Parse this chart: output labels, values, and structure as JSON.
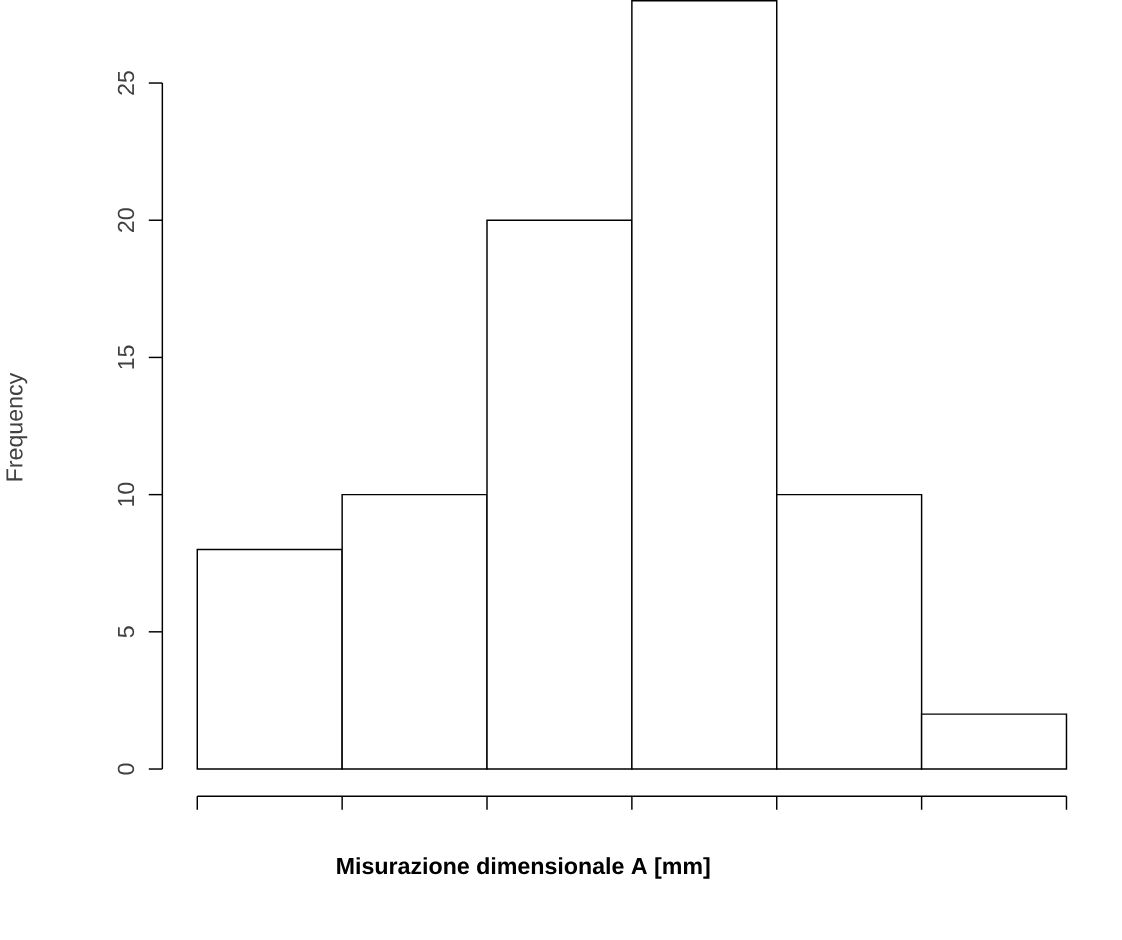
{
  "chart_data": {
    "type": "bar",
    "xlabel": "Misurazione dimensionale A [mm]",
    "ylabel": "Frequency",
    "categories": [
      null,
      null,
      null,
      null,
      null,
      null
    ],
    "values": [
      8,
      10,
      20,
      28,
      10,
      2
    ],
    "color": "#ffffff",
    "ylim": [
      0,
      28
    ],
    "yticks": [
      0,
      5,
      10,
      15,
      20,
      25
    ]
  }
}
